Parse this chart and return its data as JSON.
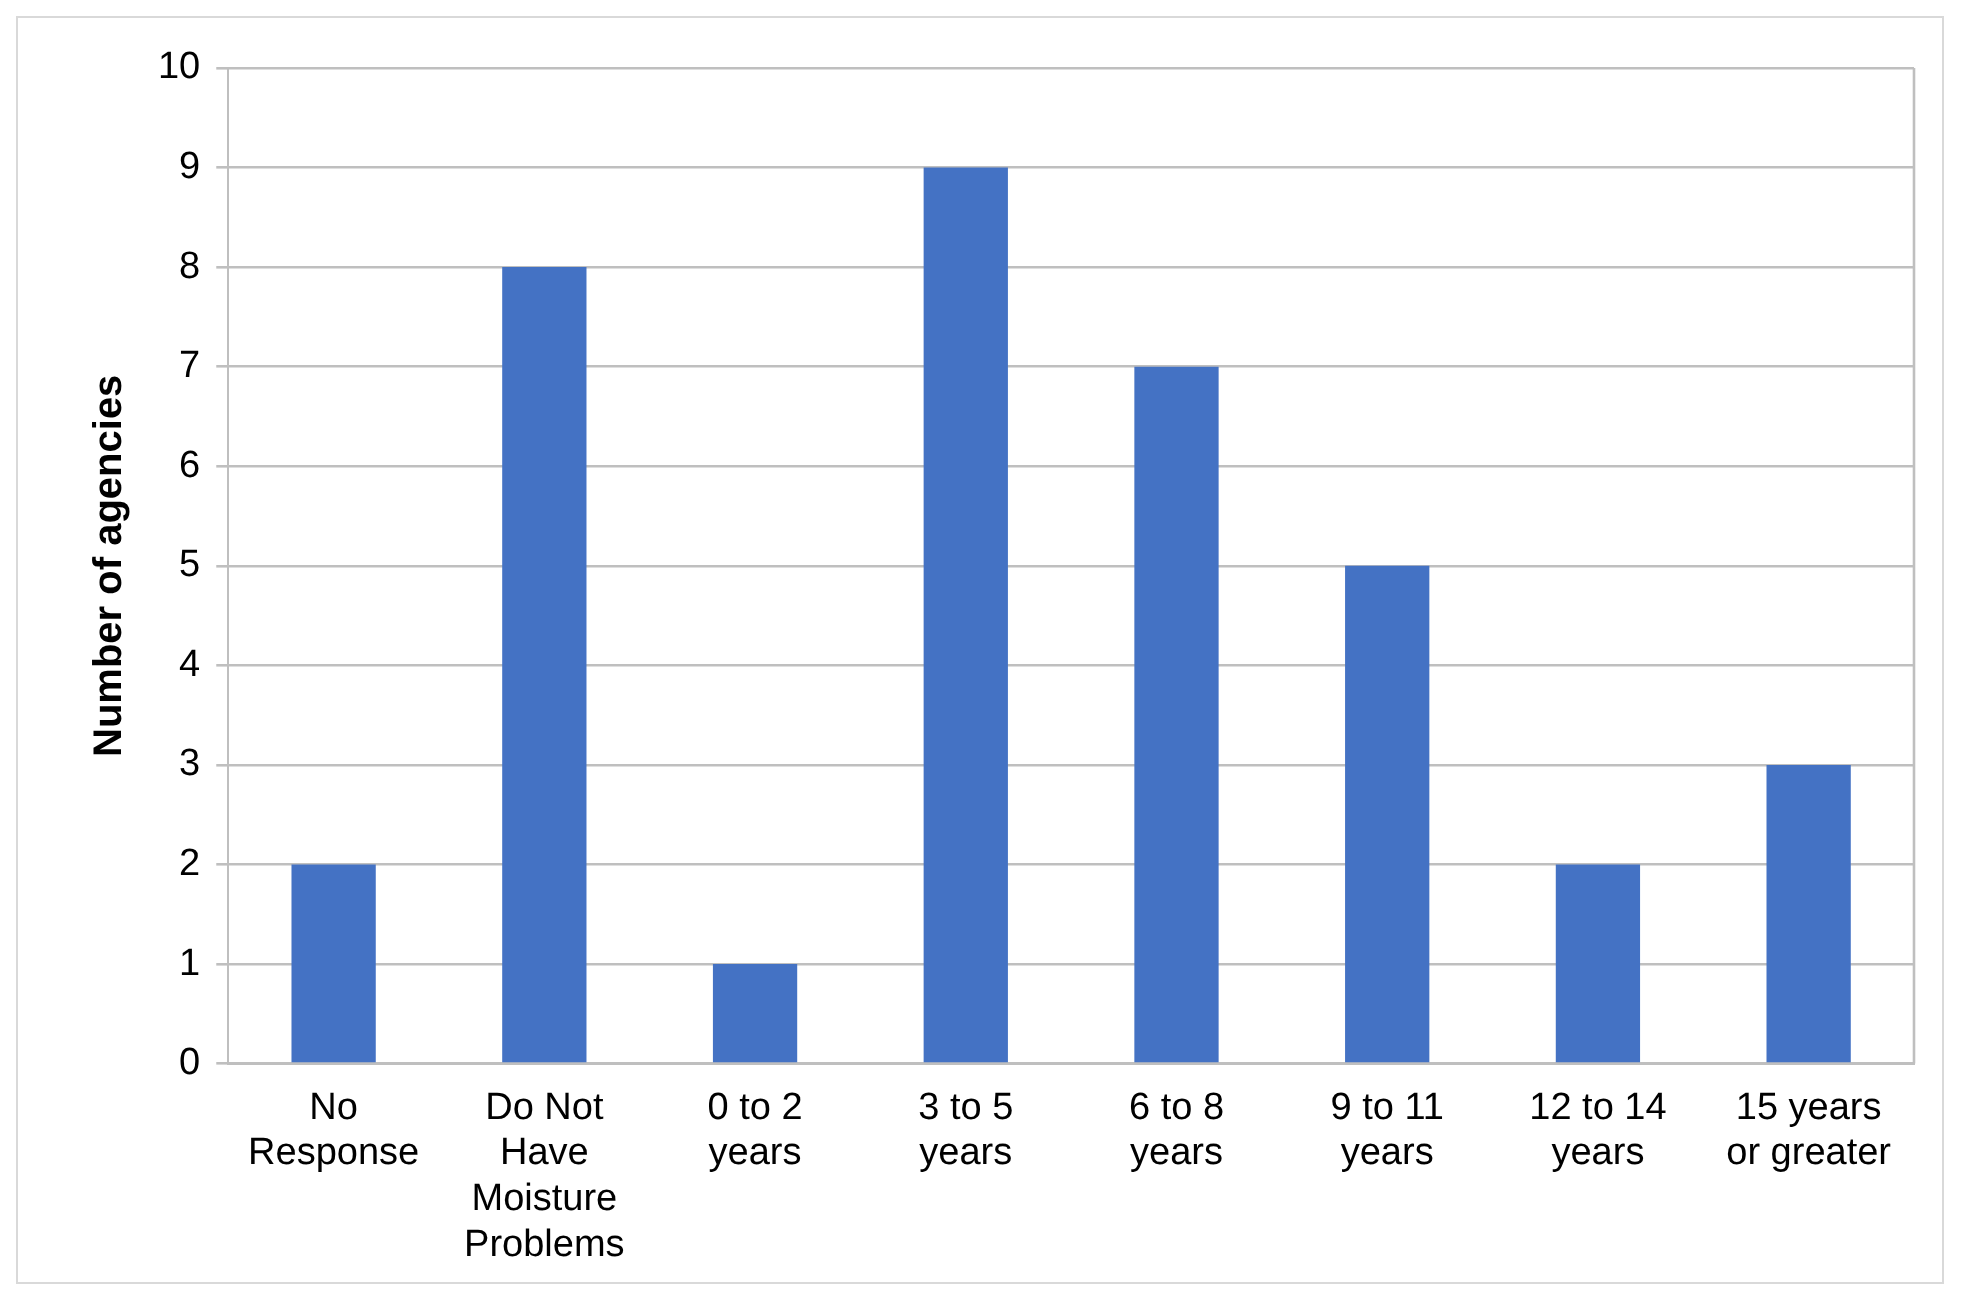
{
  "chart_data": {
    "type": "bar",
    "ylabel": "Number of agencies",
    "categories": [
      "No Response",
      "Do Not Have Moisture Problems",
      "0 to 2 years",
      "3 to 5 years",
      "6 to 8 years",
      "9 to 11 years",
      "12 to 14 years",
      "15 years or greater"
    ],
    "values": [
      2,
      8,
      1,
      9,
      7,
      5,
      2,
      3
    ],
    "color": "#4472c4",
    "ylim": [
      0,
      10
    ],
    "yticks": [
      0,
      1,
      2,
      3,
      4,
      5,
      6,
      7,
      8,
      9,
      10
    ],
    "grid": "y",
    "legend": false
  }
}
